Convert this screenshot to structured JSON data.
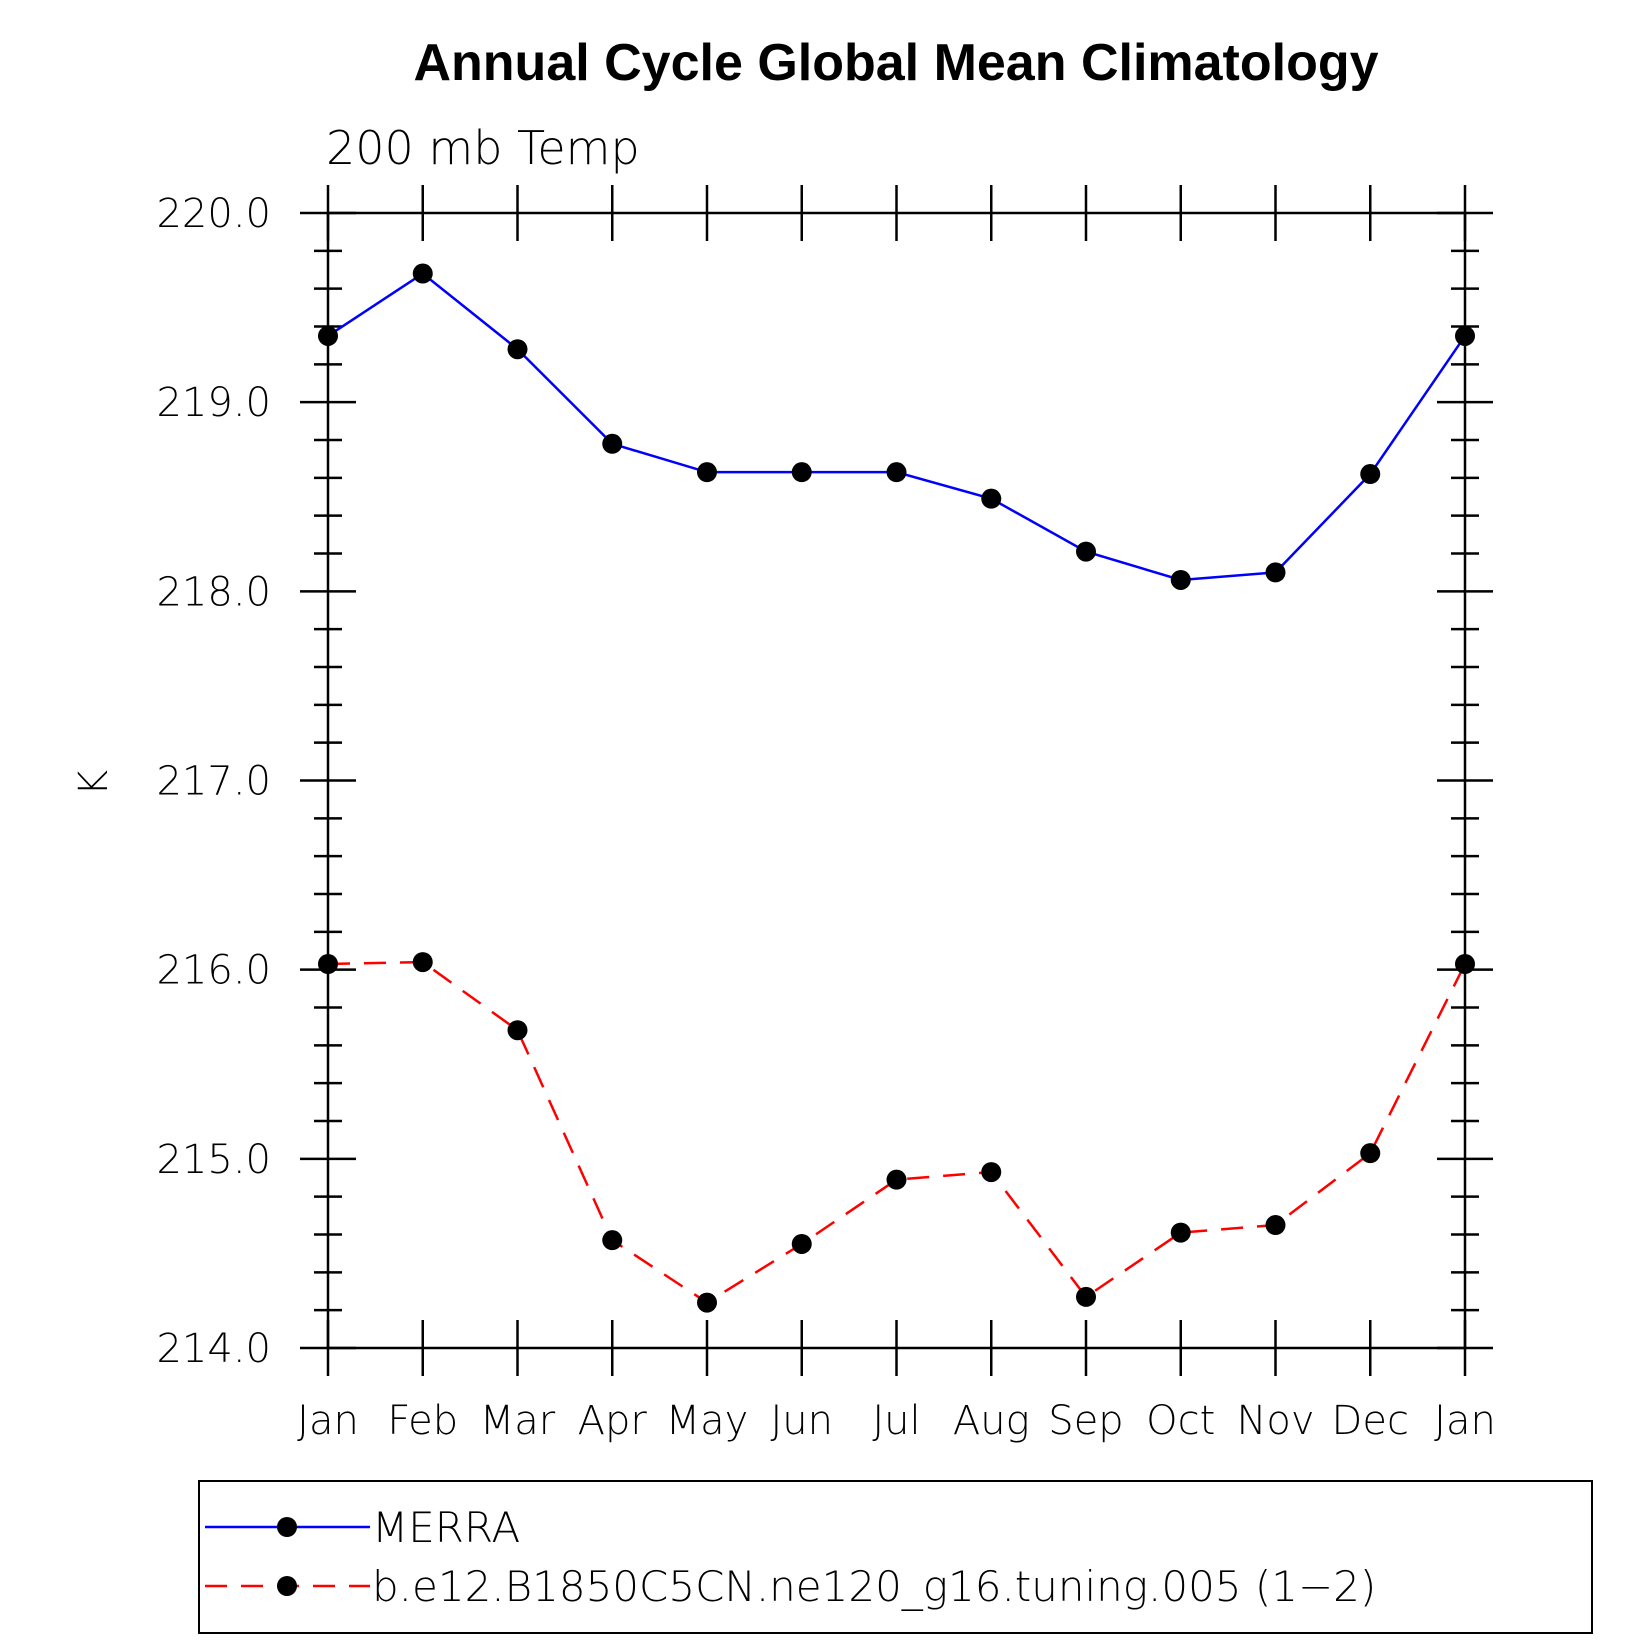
{
  "chart_data": {
    "type": "line",
    "title": "Annual Cycle Global Mean Climatology",
    "subtitle": "200 mb Temp",
    "xlabel": "",
    "ylabel": "K",
    "categories": [
      "Jan",
      "Feb",
      "Mar",
      "Apr",
      "May",
      "Jun",
      "Jul",
      "Aug",
      "Sep",
      "Oct",
      "Nov",
      "Dec",
      "Jan"
    ],
    "ylim": [
      214.0,
      220.0
    ],
    "yticks": [
      "214.0",
      "215.0",
      "216.0",
      "217.0",
      "218.0",
      "219.0",
      "220.0"
    ],
    "grid": false,
    "legend_position": "bottom",
    "series": [
      {
        "name": "MERRA",
        "color": "#0000ff",
        "line_style": "solid",
        "marker": "filled-circle",
        "values": [
          219.35,
          219.68,
          219.28,
          218.78,
          218.63,
          218.63,
          218.63,
          218.49,
          218.21,
          218.06,
          218.1,
          218.62,
          219.35
        ]
      },
      {
        "name": "b.e12.B1850C5CN.ne120_g16.tuning.005 (1−2)",
        "color": "#ff0000",
        "line_style": "dashed",
        "marker": "filled-circle",
        "values": [
          216.03,
          216.04,
          215.68,
          214.57,
          214.24,
          214.55,
          214.89,
          214.93,
          214.27,
          214.61,
          214.65,
          215.03,
          216.03
        ]
      }
    ]
  }
}
